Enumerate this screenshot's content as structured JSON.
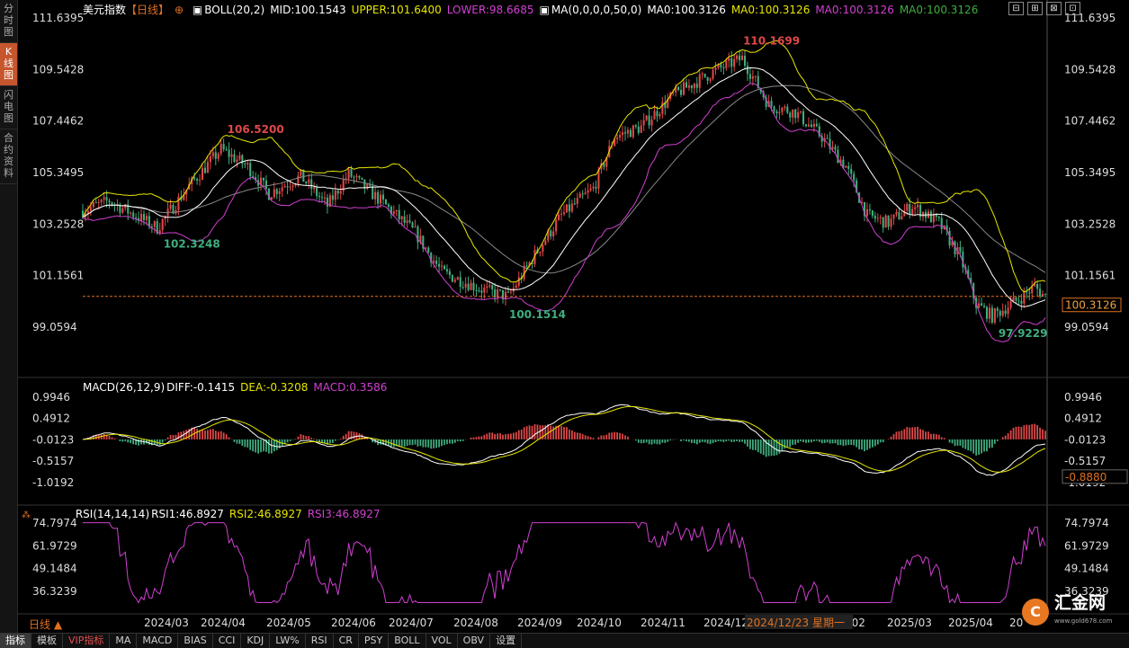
{
  "sidebar": {
    "tabs": [
      {
        "label": "分时图",
        "chars": [
          "分",
          "时",
          "图"
        ],
        "active": false
      },
      {
        "label": "K线图",
        "chars": [
          "K",
          "线",
          "图"
        ],
        "active": true
      },
      {
        "label": "闪电图",
        "chars": [
          "闪",
          "电",
          "图"
        ],
        "active": false
      },
      {
        "label": "合约资料",
        "chars": [
          "合",
          "约",
          "资",
          "料"
        ],
        "active": false
      }
    ]
  },
  "header": {
    "title": "美元指数",
    "period": "【日线】",
    "boll_name": "BOLL(20,2)",
    "mid": "MID:100.1543",
    "upper": "UPPER:101.6400",
    "lower": "LOWER:98.6685",
    "ma_name": "MA(0,0,0,0,50,0)",
    "ma1": "MA0:100.3126",
    "ma2": "MA0:100.3126",
    "ma3": "MA0:100.3126",
    "ma4": "MA0:100.3126"
  },
  "macd_header": {
    "name": "MACD(26,12,9)",
    "diff": "DIFF:-0.1415",
    "dea": "DEA:-0.3208",
    "macd": "MACD:0.3586"
  },
  "rsi_header": {
    "name": "RSI(14,14,14)",
    "rsi1": "RSI1:46.8927",
    "rsi2": "RSI2:46.8927",
    "rsi3": "RSI3:46.8927"
  },
  "colors": {
    "up": "#e04848",
    "down": "#3fae7f",
    "boll_upper": "#e6e600",
    "boll_lower": "#d040d0",
    "mid": "#ffffff",
    "ma": "#888888",
    "dea": "#e6e600",
    "macd_neg": "#3fae7f",
    "price_line": "#e07020",
    "rsi": "#d040d0"
  },
  "tools": [
    "⊟",
    "⊞",
    "⊠",
    "⊡"
  ],
  "chart_data": [
    {
      "type": "candlestick",
      "title": "美元指数 日线",
      "y_ticks": [
        "111.6395",
        "109.5428",
        "107.4462",
        "105.3495",
        "103.2528",
        "101.1561",
        "99.0594"
      ],
      "last_price": "100.3126",
      "annotations": [
        {
          "text": "106.5200"
        },
        {
          "text": "102.3248"
        },
        {
          "text": "100.1514"
        },
        {
          "text": "110.1699"
        },
        {
          "text": "97.9229"
        }
      ],
      "x_labels": [
        "2024/03",
        "2024/04",
        "2024/05",
        "2024/06",
        "2024/07",
        "2024/08",
        "2024/09",
        "2024/10",
        "2024/11",
        "2024/12",
        "2025/02",
        "2025/03",
        "2025/04",
        "20"
      ],
      "cursor_date": "2024/12/23 星期一"
    },
    {
      "type": "bar",
      "title": "MACD",
      "y_ticks": [
        "0.9946",
        "0.4912",
        "-0.0123",
        "-0.5157",
        "-1.0192"
      ],
      "last_value": "-0.8880"
    },
    {
      "type": "line",
      "title": "RSI",
      "y_ticks": [
        "74.7974",
        "61.9729",
        "49.1484",
        "36.3239"
      ]
    }
  ],
  "bottom_tabs": [
    {
      "label": "指标",
      "style": "sel"
    },
    {
      "label": "模板",
      "style": ""
    },
    {
      "label": "VIP指标",
      "style": "red"
    },
    {
      "label": "MA",
      "style": ""
    },
    {
      "label": "MACD",
      "style": ""
    },
    {
      "label": "BIAS",
      "style": ""
    },
    {
      "label": "CCI",
      "style": ""
    },
    {
      "label": "KDJ",
      "style": ""
    },
    {
      "label": "LW%",
      "style": ""
    },
    {
      "label": "RSI",
      "style": ""
    },
    {
      "label": "CR",
      "style": ""
    },
    {
      "label": "PSY",
      "style": ""
    },
    {
      "label": "BOLL",
      "style": ""
    },
    {
      "label": "VOL",
      "style": ""
    },
    {
      "label": "OBV",
      "style": ""
    },
    {
      "label": "设置",
      "style": ""
    }
  ],
  "day_label": "日线 ▲",
  "logo": {
    "mark": "C",
    "name": "汇金网",
    "url": "www.gold678.com"
  }
}
